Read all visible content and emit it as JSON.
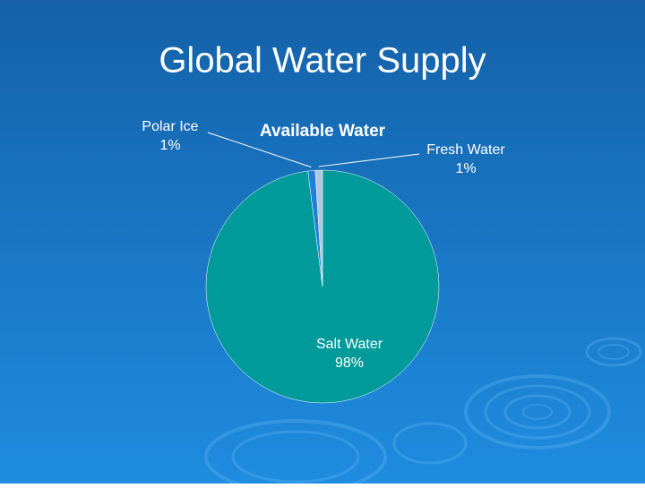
{
  "slide_title": "Global Water Supply",
  "chart_data": {
    "type": "pie",
    "title": "Available Water",
    "categories": [
      "Salt Water",
      "Polar Ice",
      "Fresh Water"
    ],
    "values": [
      98,
      1,
      1
    ],
    "value_labels": [
      "98%",
      "1%",
      "1%"
    ],
    "colors": [
      "#009a9a",
      "#1e7fd8",
      "#b4c6dc"
    ]
  }
}
